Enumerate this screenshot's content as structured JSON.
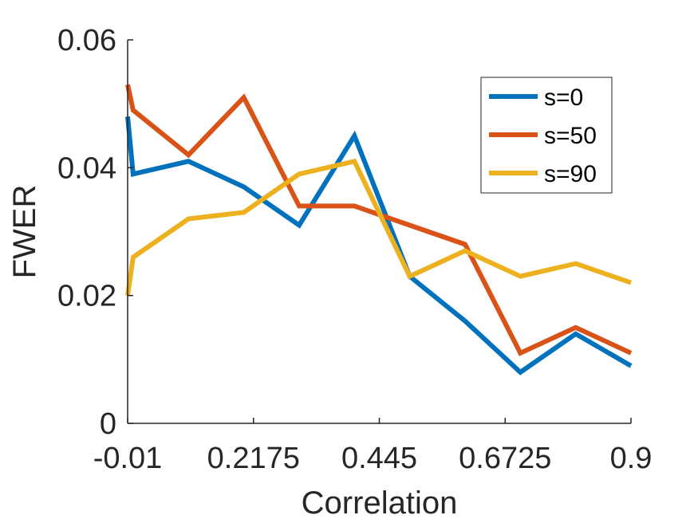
{
  "chart_data": {
    "type": "line",
    "title": "",
    "xlabel": "Correlation",
    "ylabel": "FWER",
    "xlim": [
      -0.01,
      0.9
    ],
    "ylim": [
      0,
      0.06
    ],
    "xticks": [
      -0.01,
      0.2175,
      0.445,
      0.6725,
      0.9
    ],
    "xtick_labels": [
      "-0.01",
      "0.2175",
      "0.445",
      "0.6725",
      "0.9"
    ],
    "yticks": [
      0,
      0.02,
      0.04,
      0.06
    ],
    "ytick_labels": [
      "0",
      "0.02",
      "0.04",
      "0.06"
    ],
    "grid": false,
    "legend_position": "top-right",
    "x": [
      -0.01,
      0.0,
      0.1,
      0.2,
      0.3,
      0.4,
      0.5,
      0.6,
      0.7,
      0.8,
      0.9
    ],
    "series": [
      {
        "name": "s=0",
        "color": "#0072BD",
        "values": [
          0.048,
          0.039,
          0.041,
          0.037,
          0.031,
          0.045,
          0.023,
          0.016,
          0.008,
          0.014,
          0.009
        ]
      },
      {
        "name": "s=50",
        "color": "#D95319",
        "values": [
          0.053,
          0.049,
          0.042,
          0.051,
          0.034,
          0.034,
          0.031,
          0.028,
          0.011,
          0.015,
          0.011
        ]
      },
      {
        "name": "s=90",
        "color": "#EDB120",
        "values": [
          0.02,
          0.026,
          0.032,
          0.033,
          0.039,
          0.041,
          0.023,
          0.027,
          0.023,
          0.025,
          0.022
        ]
      }
    ]
  }
}
